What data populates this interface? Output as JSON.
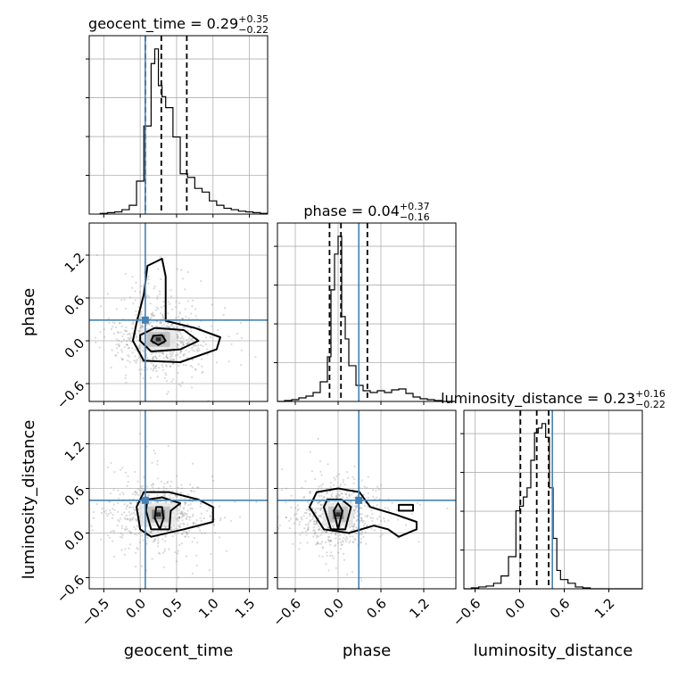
{
  "chart_data": {
    "type": "corner",
    "parameters": [
      "geocent_time",
      "phase",
      "luminosity_distance"
    ],
    "axis_labels": [
      "geocent_time",
      "phase",
      "luminosity_distance"
    ],
    "ranges": [
      [
        -0.7,
        1.75
      ],
      [
        -0.85,
        1.65
      ],
      [
        -0.75,
        1.65
      ]
    ],
    "ticks": [
      [
        -0.5,
        0.0,
        0.5,
        1.0,
        1.5
      ],
      [
        -0.6,
        0.0,
        0.6,
        1.2
      ],
      [
        -0.6,
        0.0,
        0.6,
        1.2
      ]
    ],
    "tick_labels": [
      [
        "−0.5",
        "0.0",
        "0.5",
        "1.0",
        "1.5"
      ],
      [
        "−0.6",
        "0.0",
        "0.6",
        "1.2"
      ],
      [
        "−0.6",
        "0.0",
        "0.6",
        "1.2"
      ]
    ],
    "titles": [
      {
        "text": "geocent_time = 0.29",
        "sup": "+0.35",
        "sub": "−0.22"
      },
      {
        "text": "phase = 0.04",
        "sup": "+0.37",
        "sub": "−0.16"
      },
      {
        "text": "luminosity_distance = 0.23",
        "sup": "+0.16",
        "sub": "−0.22"
      }
    ],
    "medians": [
      0.29,
      0.04,
      0.23
    ],
    "quantiles": [
      [
        0.07,
        0.29,
        0.64
      ],
      [
        -0.12,
        0.04,
        0.41
      ],
      [
        0.01,
        0.23,
        0.39
      ]
    ],
    "truths": [
      0.07,
      0.29,
      0.44
    ],
    "hist1d": [
      {
        "edges": [
          -0.55,
          -0.45,
          -0.35,
          -0.25,
          -0.15,
          -0.05,
          0.05,
          0.15,
          0.2,
          0.25,
          0.3,
          0.35,
          0.45,
          0.55,
          0.65,
          0.75,
          0.85,
          0.95,
          1.05,
          1.15,
          1.25,
          1.35,
          1.45,
          1.55,
          1.65,
          1.75
        ],
        "counts": [
          1,
          2,
          3,
          6,
          12,
          45,
          120,
          205,
          225,
          175,
          160,
          145,
          105,
          55,
          50,
          35,
          30,
          18,
          12,
          8,
          6,
          4,
          3,
          2,
          1
        ]
      },
      {
        "edges": [
          -0.85,
          -0.75,
          -0.65,
          -0.55,
          -0.45,
          -0.35,
          -0.25,
          -0.15,
          -0.1,
          -0.05,
          0.0,
          0.05,
          0.1,
          0.15,
          0.25,
          0.35,
          0.45,
          0.55,
          0.65,
          0.75,
          0.85,
          0.95,
          1.05,
          1.15,
          1.25,
          1.35,
          1.45,
          1.55,
          1.65
        ],
        "counts": [
          0,
          1,
          2,
          4,
          6,
          10,
          22,
          50,
          125,
          165,
          185,
          95,
          70,
          40,
          18,
          12,
          10,
          12,
          10,
          13,
          14,
          9,
          5,
          3,
          2,
          1,
          0,
          0
        ]
      },
      {
        "edges": [
          -0.75,
          -0.65,
          -0.55,
          -0.45,
          -0.35,
          -0.25,
          -0.15,
          -0.05,
          0.0,
          0.05,
          0.1,
          0.15,
          0.2,
          0.25,
          0.3,
          0.35,
          0.4,
          0.45,
          0.5,
          0.55,
          0.65,
          0.75,
          0.85,
          0.95,
          1.05,
          1.15,
          1.25,
          1.35,
          1.45,
          1.55,
          1.65
        ],
        "counts": [
          0,
          1,
          2,
          3,
          6,
          14,
          35,
          85,
          90,
          100,
          110,
          140,
          170,
          175,
          180,
          165,
          110,
          55,
          20,
          10,
          6,
          2,
          1,
          0,
          0,
          0,
          0,
          0,
          0,
          0
        ]
      }
    ],
    "pairs": [
      {
        "x": 0,
        "y": 1,
        "center": [
          0.25,
          0.02
        ],
        "spread": [
          0.35,
          0.28
        ],
        "contours": [
          [
            [
              0.15,
              0.0
            ],
            [
              0.25,
              -0.06
            ],
            [
              0.35,
              0.0
            ],
            [
              0.3,
              0.08
            ],
            [
              0.18,
              0.07
            ]
          ],
          [
            [
              0.0,
              0.0
            ],
            [
              0.15,
              -0.15
            ],
            [
              0.55,
              -0.12
            ],
            [
              0.8,
              0.0
            ],
            [
              0.6,
              0.15
            ],
            [
              0.2,
              0.18
            ],
            [
              0.0,
              0.08
            ]
          ],
          [
            [
              -0.1,
              0.0
            ],
            [
              0.05,
              -0.28
            ],
            [
              0.55,
              -0.3
            ],
            [
              1.05,
              -0.12
            ],
            [
              1.1,
              0.05
            ],
            [
              0.75,
              0.18
            ],
            [
              0.35,
              0.28
            ],
            [
              0.35,
              0.9
            ],
            [
              0.3,
              1.15
            ],
            [
              0.1,
              1.05
            ],
            [
              0.05,
              0.65
            ],
            [
              -0.05,
              0.25
            ]
          ]
        ]
      },
      {
        "x": 0,
        "y": 2,
        "center": [
          0.25,
          0.25
        ],
        "spread": [
          0.35,
          0.22
        ],
        "contours": [
          [
            [
              0.2,
              0.2
            ],
            [
              0.27,
              0.05
            ],
            [
              0.32,
              0.2
            ],
            [
              0.3,
              0.35
            ],
            [
              0.22,
              0.35
            ]
          ],
          [
            [
              0.08,
              0.3
            ],
            [
              0.15,
              0.05
            ],
            [
              0.4,
              0.05
            ],
            [
              0.42,
              0.3
            ],
            [
              0.55,
              0.4
            ],
            [
              0.3,
              0.48
            ],
            [
              0.1,
              0.45
            ]
          ],
          [
            [
              -0.05,
              0.35
            ],
            [
              0.0,
              0.05
            ],
            [
              0.15,
              -0.05
            ],
            [
              0.6,
              0.05
            ],
            [
              1.0,
              0.15
            ],
            [
              1.0,
              0.35
            ],
            [
              0.8,
              0.45
            ],
            [
              0.4,
              0.55
            ],
            [
              0.05,
              0.55
            ]
          ]
        ]
      },
      {
        "x": 1,
        "y": 2,
        "center": [
          0.0,
          0.25
        ],
        "spread": [
          0.3,
          0.22
        ],
        "contours": [
          [
            [
              -0.06,
              0.3
            ],
            [
              0.0,
              0.05
            ],
            [
              0.06,
              0.3
            ],
            [
              0.0,
              0.4
            ]
          ],
          [
            [
              -0.2,
              0.35
            ],
            [
              -0.1,
              0.05
            ],
            [
              0.1,
              0.05
            ],
            [
              0.18,
              0.35
            ],
            [
              0.05,
              0.45
            ],
            [
              -0.15,
              0.45
            ]
          ],
          [
            [
              -0.4,
              0.35
            ],
            [
              -0.2,
              0.05
            ],
            [
              0.15,
              0.0
            ],
            [
              0.5,
              0.1
            ],
            [
              0.7,
              0.05
            ],
            [
              0.85,
              -0.05
            ],
            [
              1.1,
              0.05
            ],
            [
              1.1,
              0.15
            ],
            [
              0.8,
              0.25
            ],
            [
              0.45,
              0.35
            ],
            [
              0.3,
              0.55
            ],
            [
              0.0,
              0.6
            ],
            [
              -0.3,
              0.55
            ]
          ],
          [
            [
              0.85,
              0.3
            ],
            [
              1.05,
              0.3
            ],
            [
              1.05,
              0.38
            ],
            [
              0.85,
              0.38
            ]
          ]
        ]
      }
    ],
    "colors": {
      "truth": "#4682b4",
      "hist": "#000000",
      "contour": "#000000",
      "grid": "#b0b0b0",
      "samples": "#7a7a7a"
    }
  }
}
